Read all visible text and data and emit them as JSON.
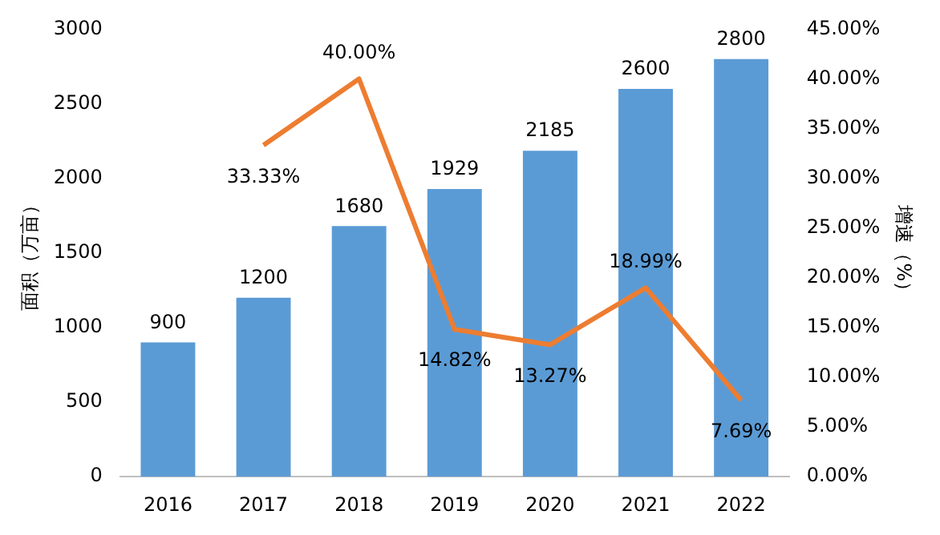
{
  "chart_data": {
    "type": "bar",
    "categories": [
      "2016",
      "2017",
      "2018",
      "2019",
      "2020",
      "2021",
      "2022"
    ],
    "ylabel": "面积（万亩）",
    "y2label": "增速（%）",
    "ylim": [
      0,
      3000
    ],
    "yticks": [
      0,
      500,
      1000,
      1500,
      2000,
      2500,
      3000
    ],
    "y2lim": [
      0,
      45
    ],
    "y2ticks": [
      {
        "value": 0,
        "label": "0.00%"
      },
      {
        "value": 5,
        "label": "5.00%"
      },
      {
        "value": 10,
        "label": "10.00%"
      },
      {
        "value": 15,
        "label": "15.00%"
      },
      {
        "value": 20,
        "label": "20.00%"
      },
      {
        "value": 25,
        "label": "25.00%"
      },
      {
        "value": 30,
        "label": "30.00%"
      },
      {
        "value": 35,
        "label": "35.00%"
      },
      {
        "value": 40,
        "label": "40.00%"
      },
      {
        "value": 45,
        "label": "45.00%"
      }
    ],
    "grid": false,
    "marker": "none",
    "series": [
      {
        "color": "#5b9bd5",
        "values": [
          900,
          1200,
          1680,
          1929,
          2185,
          2600,
          2800
        ],
        "value_labels": [
          "900",
          "1200",
          "1680",
          "1929",
          "2185",
          "2600",
          "2800"
        ]
      },
      {
        "type": "line",
        "axis": "y2",
        "color": "#ed7d31",
        "values": [
          null,
          33.33,
          40.0,
          14.82,
          13.27,
          18.99,
          7.69
        ],
        "value_labels": [
          null,
          "33.33%",
          "40.00%",
          "14.82%",
          "13.27%",
          "18.99%",
          "7.69%"
        ]
      }
    ]
  }
}
